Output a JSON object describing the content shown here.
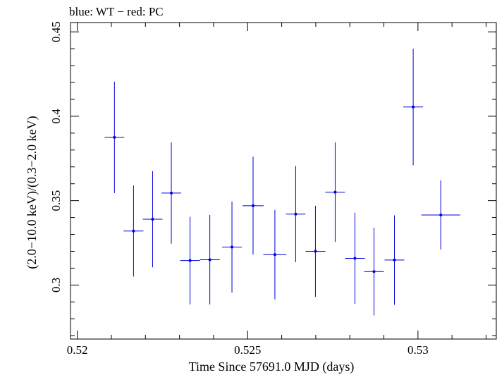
{
  "chart_data": {
    "type": "scatter",
    "title": "blue: WT − red: PC",
    "xlabel": "Time Since 57691.0 MJD (days)",
    "ylabel": "(2.0−10.0 keV)/(0.3−2.0 keV)",
    "xlim": [
      0.5198,
      0.5323
    ],
    "ylim": [
      0.268,
      0.4555
    ],
    "x_ticks": [
      0.52,
      0.525,
      0.53
    ],
    "x_tick_labels": [
      "0.52",
      "0.525",
      "0.53"
    ],
    "y_ticks": [
      0.3,
      0.35,
      0.4,
      0.45
    ],
    "y_tick_labels": [
      "0.3",
      "0.35",
      "0.4",
      "0.45"
    ],
    "grid": false,
    "series": [
      {
        "color": "#0000dd",
        "points": [
          {
            "x": 0.52109,
            "xerr": 0.00029,
            "y": 0.3875,
            "yerr_lo": 0.033,
            "yerr_hi": 0.033
          },
          {
            "x": 0.52165,
            "xerr": 0.00029,
            "y": 0.332,
            "yerr_lo": 0.027,
            "yerr_hi": 0.027
          },
          {
            "x": 0.52221,
            "xerr": 0.00029,
            "y": 0.339,
            "yerr_lo": 0.0285,
            "yerr_hi": 0.0285
          },
          {
            "x": 0.52276,
            "xerr": 0.00029,
            "y": 0.3545,
            "yerr_lo": 0.03,
            "yerr_hi": 0.03
          },
          {
            "x": 0.52331,
            "xerr": 0.00029,
            "y": 0.3145,
            "yerr_lo": 0.026,
            "yerr_hi": 0.026
          },
          {
            "x": 0.52389,
            "xerr": 0.00029,
            "y": 0.315,
            "yerr_lo": 0.0265,
            "yerr_hi": 0.0265
          },
          {
            "x": 0.52454,
            "xerr": 0.00029,
            "y": 0.3225,
            "yerr_lo": 0.027,
            "yerr_hi": 0.027
          },
          {
            "x": 0.52516,
            "xerr": 0.00031,
            "y": 0.347,
            "yerr_lo": 0.029,
            "yerr_hi": 0.029
          },
          {
            "x": 0.5258,
            "xerr": 0.00034,
            "y": 0.318,
            "yerr_lo": 0.0265,
            "yerr_hi": 0.0265
          },
          {
            "x": 0.52641,
            "xerr": 0.00029,
            "y": 0.342,
            "yerr_lo": 0.0285,
            "yerr_hi": 0.0285
          },
          {
            "x": 0.52699,
            "xerr": 0.00029,
            "y": 0.32,
            "yerr_lo": 0.027,
            "yerr_hi": 0.027
          },
          {
            "x": 0.52757,
            "xerr": 0.00029,
            "y": 0.355,
            "yerr_lo": 0.0295,
            "yerr_hi": 0.0295
          },
          {
            "x": 0.52815,
            "xerr": 0.00029,
            "y": 0.3158,
            "yerr_lo": 0.027,
            "yerr_hi": 0.027
          },
          {
            "x": 0.52871,
            "xerr": 0.00029,
            "y": 0.308,
            "yerr_lo": 0.026,
            "yerr_hi": 0.026
          },
          {
            "x": 0.52931,
            "xerr": 0.00029,
            "y": 0.3148,
            "yerr_lo": 0.0265,
            "yerr_hi": 0.0265
          },
          {
            "x": 0.52986,
            "xerr": 0.00029,
            "y": 0.4055,
            "yerr_lo": 0.0345,
            "yerr_hi": 0.0345
          },
          {
            "x": 0.53067,
            "xerr": 0.00057,
            "y": 0.3415,
            "yerr_lo": 0.0205,
            "yerr_hi": 0.0205
          }
        ]
      }
    ]
  }
}
